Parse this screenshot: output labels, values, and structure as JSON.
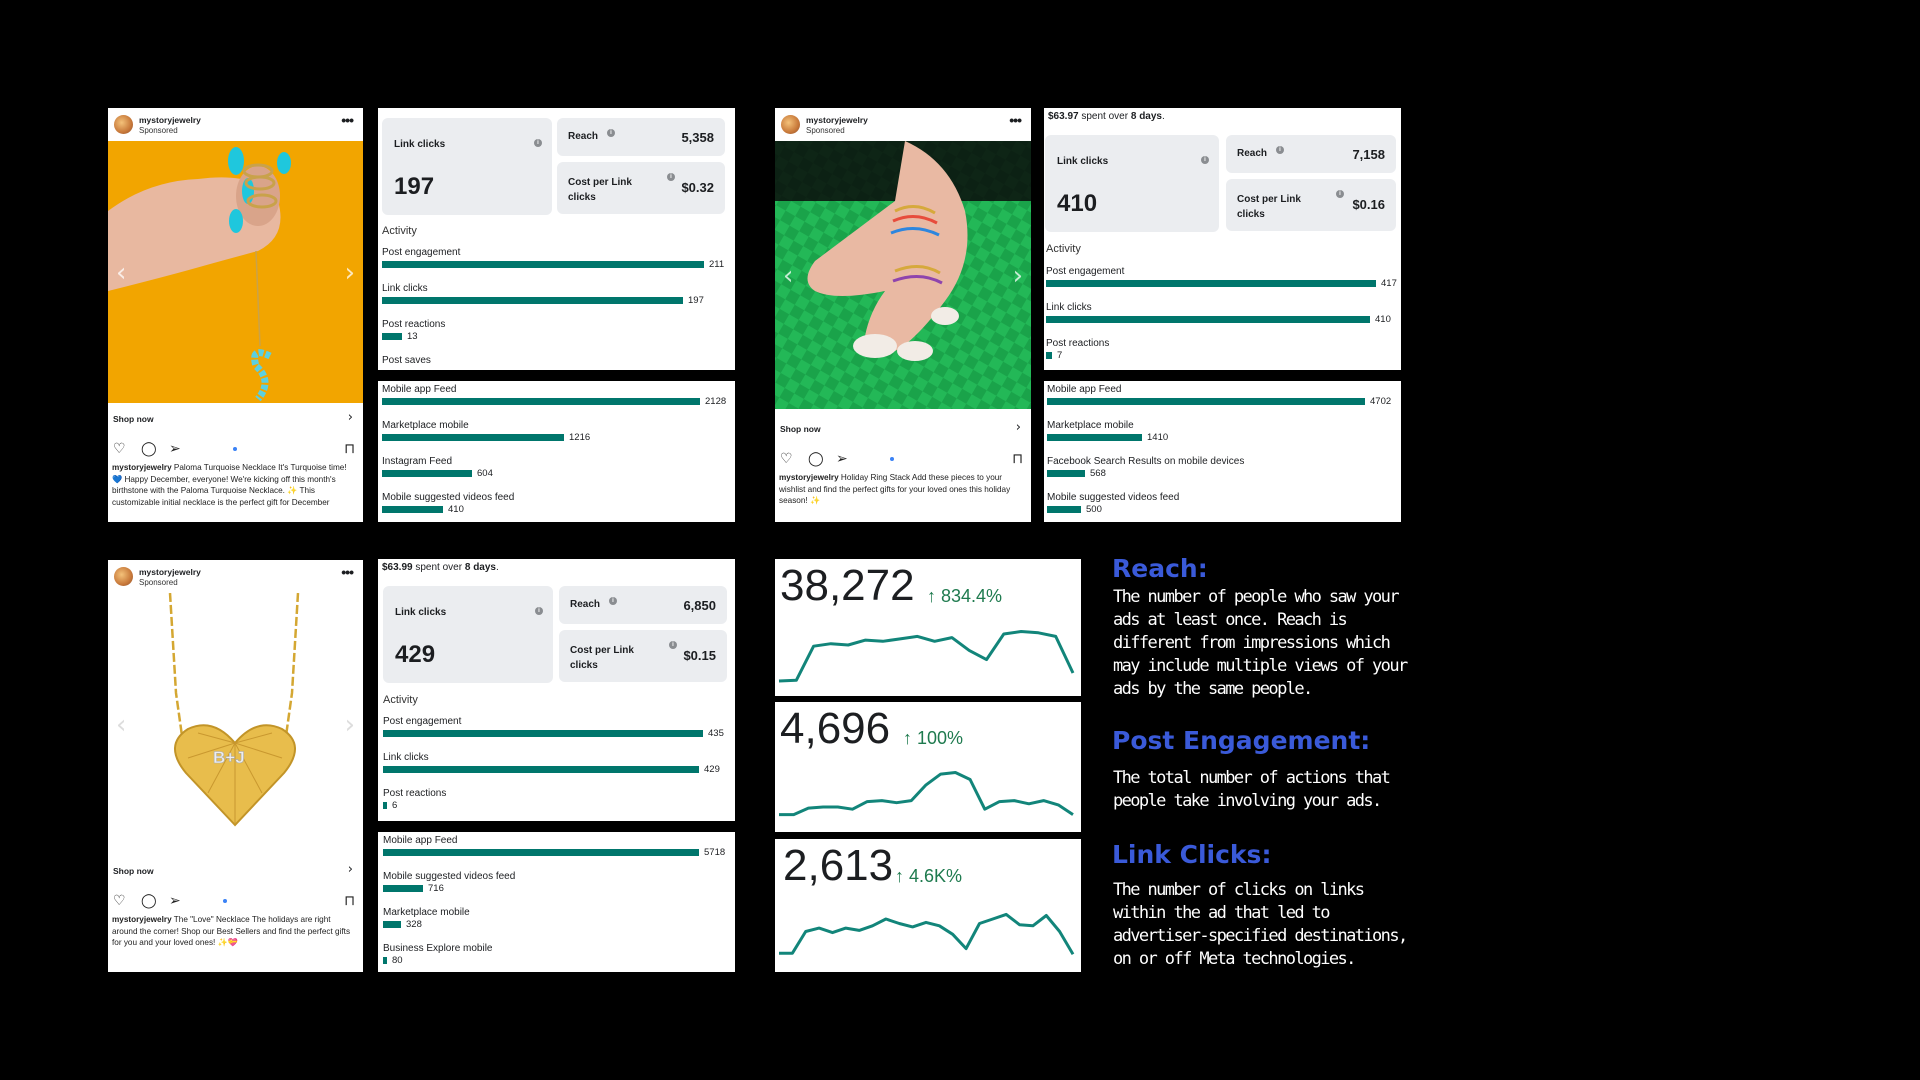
{
  "posts": [
    {
      "username": "mystoryjewelry",
      "sponsored": "Sponsored",
      "shop": "Shop now",
      "caption_product": "Paloma Turquoise Necklace",
      "caption_text": "It's Turquoise time! 💙 Happy December, everyone! We're kicking off this month's birthstone with the Paloma Turquoise Necklace. ✨ This customizable initial necklace is the perfect gift for December"
    },
    {
      "username": "mystoryjewelry",
      "sponsored": "Sponsored",
      "shop": "Shop now",
      "caption_product": "Holiday Ring Stack",
      "caption_text": "Add these pieces to your wishlist and find the perfect gifts for your loved ones this holiday season! ✨"
    },
    {
      "username": "mystoryjewelry",
      "sponsored": "Sponsored",
      "shop": "Shop now",
      "caption_product": "The \"Love\" Necklace",
      "caption_text": "The holidays are right around the corner! Shop our Best Sellers and find the perfect gifts for you and your loved ones! ✨💝"
    }
  ],
  "metrics": [
    {
      "spent_prefix": "",
      "spent_amount": "",
      "spent_mid": "",
      "spent_days": "",
      "link_clicks_label": "Link clicks",
      "link_clicks": "197",
      "reach_label": "Reach",
      "reach": "5,358",
      "cpl_label": "Cost per Link clicks",
      "cpl": "$0.32",
      "activity_label": "Activity",
      "activity": [
        {
          "label": "Post engagement",
          "value": "211",
          "n": 211
        },
        {
          "label": "Link clicks",
          "value": "197",
          "n": 197
        },
        {
          "label": "Post reactions",
          "value": "13",
          "n": 13
        },
        {
          "label": "Post saves",
          "value": "",
          "n": 0
        }
      ],
      "placements": [
        {
          "label": "Mobile app Feed",
          "value": "2128",
          "n": 2128
        },
        {
          "label": "Marketplace mobile",
          "value": "1216",
          "n": 1216
        },
        {
          "label": "Instagram Feed",
          "value": "604",
          "n": 604
        },
        {
          "label": "Mobile suggested videos feed",
          "value": "410",
          "n": 410
        }
      ]
    },
    {
      "spent_prefix": "",
      "spent_amount": "$63.97",
      "spent_mid": " spent over ",
      "spent_days": "8 days",
      "link_clicks_label": "Link clicks",
      "link_clicks": "410",
      "reach_label": "Reach",
      "reach": "7,158",
      "cpl_label": "Cost per Link clicks",
      "cpl": "$0.16",
      "activity_label": "Activity",
      "activity": [
        {
          "label": "Post engagement",
          "value": "417",
          "n": 417
        },
        {
          "label": "Link clicks",
          "value": "410",
          "n": 410
        },
        {
          "label": "Post reactions",
          "value": "7",
          "n": 7
        }
      ],
      "placements": [
        {
          "label": "Mobile app Feed",
          "value": "4702",
          "n": 4702
        },
        {
          "label": "Marketplace mobile",
          "value": "1410",
          "n": 1410
        },
        {
          "label": "Facebook Search Results on mobile devices",
          "value": "568",
          "n": 568
        },
        {
          "label": "Mobile suggested videos feed",
          "value": "500",
          "n": 500
        }
      ]
    },
    {
      "spent_prefix": "",
      "spent_amount": "$63.99",
      "spent_mid": " spent over ",
      "spent_days": "8 days",
      "link_clicks_label": "Link clicks",
      "link_clicks": "429",
      "reach_label": "Reach",
      "reach": "6,850",
      "cpl_label": "Cost per Link clicks",
      "cpl": "$0.15",
      "activity_label": "Activity",
      "activity": [
        {
          "label": "Post engagement",
          "value": "435",
          "n": 435
        },
        {
          "label": "Link clicks",
          "value": "429",
          "n": 429
        },
        {
          "label": "Post reactions",
          "value": "6",
          "n": 6
        }
      ],
      "placements": [
        {
          "label": "Mobile app Feed",
          "value": "5718",
          "n": 5718
        },
        {
          "label": "Mobile suggested videos feed",
          "value": "716",
          "n": 716
        },
        {
          "label": "Marketplace mobile",
          "value": "328",
          "n": 328
        },
        {
          "label": "Business Explore mobile",
          "value": "80",
          "n": 80
        }
      ]
    }
  ],
  "sparks": [
    {
      "value": "38,272",
      "change": "↑ 834.4%",
      "trend": [
        0.05,
        0.06,
        0.62,
        0.66,
        0.64,
        0.72,
        0.7,
        0.74,
        0.78,
        0.7,
        0.76,
        0.55,
        0.4,
        0.82,
        0.86,
        0.84,
        0.78,
        0.18
      ]
    },
    {
      "value": "4,696",
      "change": "↑ 100%",
      "trend": [
        0.1,
        0.1,
        0.22,
        0.24,
        0.24,
        0.2,
        0.34,
        0.36,
        0.32,
        0.36,
        0.65,
        0.85,
        0.88,
        0.75,
        0.2,
        0.34,
        0.36,
        0.3,
        0.36,
        0.28,
        0.1
      ]
    },
    {
      "value": "2,613",
      "change": "↑ 4.6K%",
      "trend": [
        0.12,
        0.12,
        0.5,
        0.56,
        0.48,
        0.56,
        0.52,
        0.6,
        0.72,
        0.64,
        0.58,
        0.66,
        0.6,
        0.45,
        0.2,
        0.64,
        0.72,
        0.8,
        0.62,
        0.6,
        0.78,
        0.5,
        0.1
      ]
    }
  ],
  "definitions": [
    {
      "title": "Reach:",
      "body": "The number of people who saw your ads at least once. Reach is different from impressions which may include multiple views of your ads by the same people."
    },
    {
      "title": "Post Engagement:",
      "body": "The total number of actions that people take involving your ads."
    },
    {
      "title": "Link Clicks:",
      "body": "The number of clicks on links within the ad that led to advertiser-specified destinations, on or off Meta technologies."
    }
  ],
  "colors": {
    "bar": "#00766c",
    "spark_line": "#12857a",
    "accent": "#3a5ad9",
    "growth": "#1e7a4e"
  }
}
